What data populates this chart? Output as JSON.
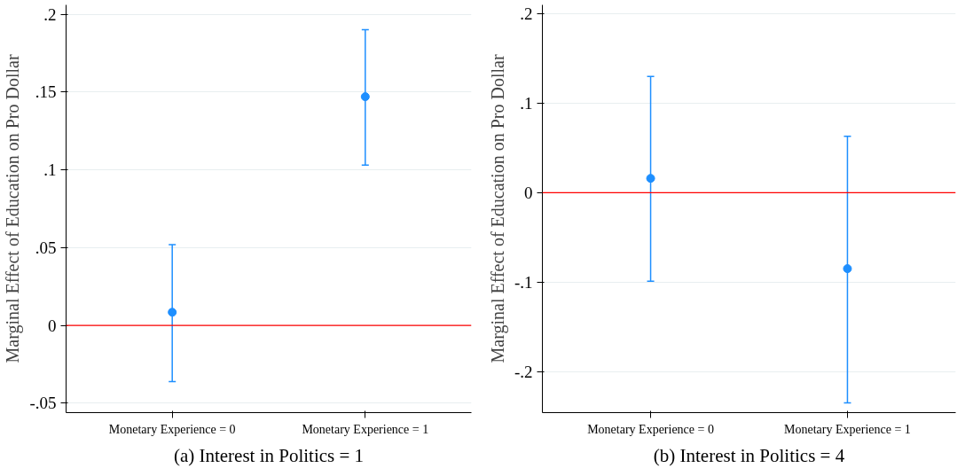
{
  "chart_data": [
    {
      "type": "scatter",
      "title": "(a) Interest in Politics = 1",
      "ylabel": "Marginal Effect of Education on Pro Dollar",
      "categories": [
        "Monetary Experience = 0",
        "Monetary Experience = 1"
      ],
      "series": [
        {
          "color": "#1e8fff",
          "values": [
            0.0085,
            0.147
          ],
          "errors": [
            [
              -0.036,
              0.052
            ],
            [
              0.103,
              0.19
            ]
          ]
        }
      ],
      "ylim": [
        -0.056,
        0.206
      ],
      "yticks": [
        {
          "value": -0.05,
          "label": "-.05"
        },
        0,
        {
          "value": 0.05,
          "label": ".05"
        },
        {
          "value": 0.1,
          "label": ".1"
        },
        {
          "value": 0.15,
          "label": ".15"
        },
        {
          "value": 0.2,
          "label": ".2"
        }
      ],
      "ref_lines": [
        {
          "axis": "y",
          "value": 0,
          "color": "#ff0000"
        }
      ],
      "grid": "y",
      "marker": "circle"
    },
    {
      "type": "scatter",
      "title": "(b) Interest in Politics = 4",
      "ylabel": "Marginal Effect of Education on Pro Dollar",
      "categories": [
        "Monetary Experience = 0",
        "Monetary Experience = 1"
      ],
      "series": [
        {
          "color": "#1e8fff",
          "values": [
            0.016,
            -0.085
          ],
          "errors": [
            [
              -0.099,
              0.13
            ],
            [
              -0.235,
              0.063
            ]
          ]
        }
      ],
      "ylim": [
        -0.246,
        0.21
      ],
      "yticks": [
        {
          "value": -0.2,
          "label": "-.2"
        },
        {
          "value": -0.1,
          "label": "-.1"
        },
        0,
        {
          "value": 0.1,
          "label": ".1"
        },
        {
          "value": 0.2,
          "label": ".2"
        }
      ],
      "ref_lines": [
        {
          "axis": "y",
          "value": 0,
          "color": "#ff0000"
        }
      ],
      "grid": "y",
      "marker": "circle"
    }
  ]
}
